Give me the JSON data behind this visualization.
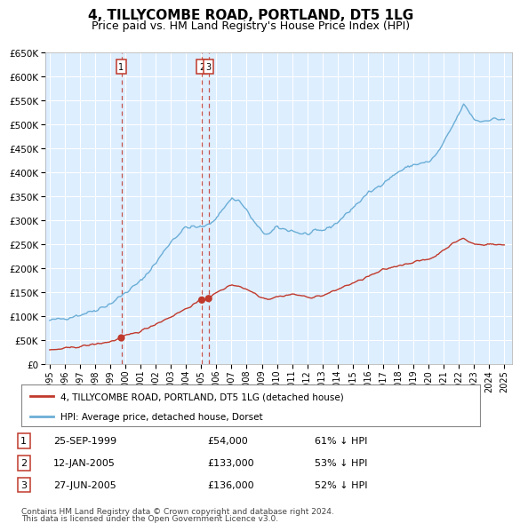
{
  "title": "4, TILLYCOMBE ROAD, PORTLAND, DT5 1LG",
  "subtitle": "Price paid vs. HM Land Registry's House Price Index (HPI)",
  "legend_line1": "4, TILLYCOMBE ROAD, PORTLAND, DT5 1LG (detached house)",
  "legend_line2": "HPI: Average price, detached house, Dorset",
  "footnote1": "Contains HM Land Registry data © Crown copyright and database right 2024.",
  "footnote2": "This data is licensed under the Open Government Licence v3.0.",
  "transactions": [
    {
      "num": 1,
      "date": "25-SEP-1999",
      "price": "£54,000",
      "hpi": "61% ↓ HPI"
    },
    {
      "num": 2,
      "date": "12-JAN-2005",
      "price": "£133,000",
      "hpi": "53% ↓ HPI"
    },
    {
      "num": 3,
      "date": "27-JUN-2005",
      "price": "£136,000",
      "hpi": "52% ↓ HPI"
    }
  ],
  "transaction_years": [
    1999.73,
    2005.04,
    2005.49
  ],
  "transaction_prices": [
    54000,
    133000,
    136000
  ],
  "hpi_color": "#6baed6",
  "property_color": "#c0392b",
  "vline_color": "#c0392b",
  "bg_color": "#ddeeff",
  "grid_color": "#ffffff",
  "ylim": [
    0,
    650000
  ],
  "xlim": [
    1994.7,
    2025.5
  ],
  "yticks": [
    0,
    50000,
    100000,
    150000,
    200000,
    250000,
    300000,
    350000,
    400000,
    450000,
    500000,
    550000,
    600000,
    650000
  ],
  "xticks": [
    1995,
    1996,
    1997,
    1998,
    1999,
    2000,
    2001,
    2002,
    2003,
    2004,
    2005,
    2006,
    2007,
    2008,
    2009,
    2010,
    2011,
    2012,
    2013,
    2014,
    2015,
    2016,
    2017,
    2018,
    2019,
    2020,
    2021,
    2022,
    2023,
    2024,
    2025
  ]
}
